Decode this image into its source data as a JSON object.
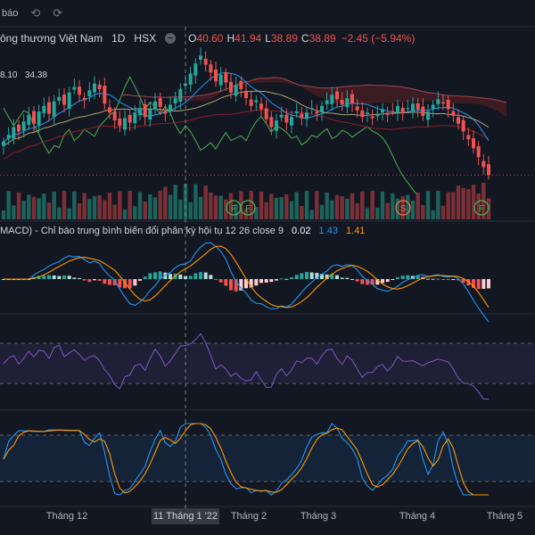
{
  "toolbar": {
    "alert_label": "báo",
    "undo_icon": "undo-icon",
    "redo_icon": "redo-icon"
  },
  "legend": {
    "symbol_name": "ông thương Việt Nam",
    "timeframe": "1D",
    "exchange": "HSX",
    "visibility_icon": "eye-icon",
    "open_key": "O",
    "open_value": "40.60",
    "high_key": "H",
    "high_value": "41.94",
    "low_key": "L",
    "low_value": "38.89",
    "close_key": "C",
    "close_value": "38.89",
    "change": "−2.45 (−5.94%)"
  },
  "ma_labels": [
    "8.10",
    "34.38"
  ],
  "macd_legend": {
    "title": "MACD) - Chỉ báo trung bình biến đổi phân kỳ hội tụ",
    "params": "12 26 close 9",
    "hist": "0.02",
    "macd": "1.43",
    "signal": "1.41"
  },
  "crosshair_date": "11 Tháng 1 '22",
  "colors": {
    "background": "#131722",
    "up": "#26a69a",
    "down": "#ef5350",
    "macd_line": "#2196f3",
    "signal_line": "#ff9800",
    "rsi_line": "#7e57c2",
    "stoch_k": "#2196f3",
    "stoch_d": "#ff9800",
    "cloud_down": "#4a1f24",
    "ichimoku_lagging": "#4caf50",
    "ichimoku_base": "#8b1f2a"
  },
  "chart_data": [
    {
      "type": "candlestick",
      "x_ticks": [
        "Tháng 12",
        "11 Tháng 1 '22",
        "Tháng 2",
        "Tháng 3",
        "Tháng 4",
        "Tháng 5"
      ],
      "closes": [
        33.2,
        33.8,
        34.5,
        34.1,
        35.0,
        35.6,
        34.8,
        35.9,
        36.4,
        35.7,
        36.8,
        37.2,
        36.5,
        37.6,
        38.1,
        37.4,
        36.9,
        37.8,
        38.4,
        37.9,
        36.6,
        35.8,
        35.1,
        34.6,
        35.3,
        34.9,
        35.8,
        36.2,
        35.4,
        36.1,
        36.8,
        36.3,
        35.7,
        36.5,
        37.1,
        37.9,
        38.4,
        39.3,
        40.2,
        40.9,
        40.1,
        39.4,
        38.6,
        39.2,
        38.5,
        37.6,
        38.3,
        37.9,
        37.1,
        36.4,
        36.9,
        36.1,
        35.2,
        34.5,
        35.1,
        35.6,
        34.9,
        35.4,
        35.9,
        35.3,
        35.8,
        36.2,
        35.7,
        36.4,
        36.9,
        37.4,
        37.0,
        36.5,
        37.1,
        36.6,
        36.0,
        35.4,
        35.8,
        35.3,
        35.7,
        36.1,
        35.6,
        35.9,
        36.4,
        35.8,
        36.2,
        36.6,
        36.1,
        35.5,
        35.9,
        36.5,
        37.0,
        36.6,
        36.1,
        35.5,
        34.8,
        34.1,
        33.4,
        32.6,
        31.8,
        30.9,
        30.2
      ],
      "events": [
        "F",
        "F",
        "S",
        "F"
      ]
    },
    {
      "type": "bar",
      "name": "volume"
    },
    {
      "type": "line",
      "indicator": "MACD",
      "params": [
        12,
        26,
        9
      ],
      "hist": 0.02,
      "macd": 1.43,
      "signal": 1.41
    },
    {
      "type": "line",
      "indicator": "RSI"
    },
    {
      "type": "line",
      "indicator": "Stochastic"
    }
  ]
}
